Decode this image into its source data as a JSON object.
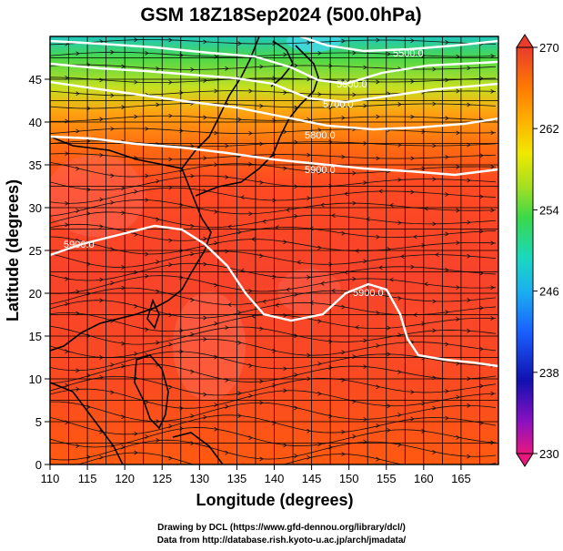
{
  "title": "GSM 18Z18Sep2024 (500.0hPa)",
  "x_axis": {
    "label": "Longitude (degrees)",
    "ticks": [
      "110",
      "115",
      "120",
      "125",
      "130",
      "135",
      "140",
      "145",
      "150",
      "155",
      "160",
      "165"
    ],
    "range": [
      110,
      170
    ]
  },
  "y_axis": {
    "label": "Latitude  (degrees)",
    "ticks": [
      "0",
      "5",
      "10",
      "15",
      "20",
      "25",
      "30",
      "35",
      "40",
      "45"
    ],
    "range": [
      0,
      50
    ]
  },
  "colorbar": {
    "labels": [
      "270",
      "262",
      "254",
      "246",
      "238",
      "230"
    ],
    "range": [
      230,
      270
    ],
    "colors": [
      "#e8177e",
      "#8a10c2",
      "#1010b0",
      "#1a60ff",
      "#1ab0f0",
      "#1ad8c0",
      "#3ad84a",
      "#a8e020",
      "#f0e800",
      "#ffb000",
      "#ff7a00",
      "#ff4e2a",
      "#e83c2c"
    ]
  },
  "contour_labels": [
    "5900.0",
    "5900.0",
    "5900.0",
    "5800.0",
    "5700.0",
    "5600.0",
    "5500.0"
  ],
  "credits": {
    "line1": "Drawing by DCL (https://www.gfd-dennou.org/library/dcl/)",
    "line2": "Data from http://database.rish.kyoto-u.ac.jp/arch/jmadata/"
  }
}
